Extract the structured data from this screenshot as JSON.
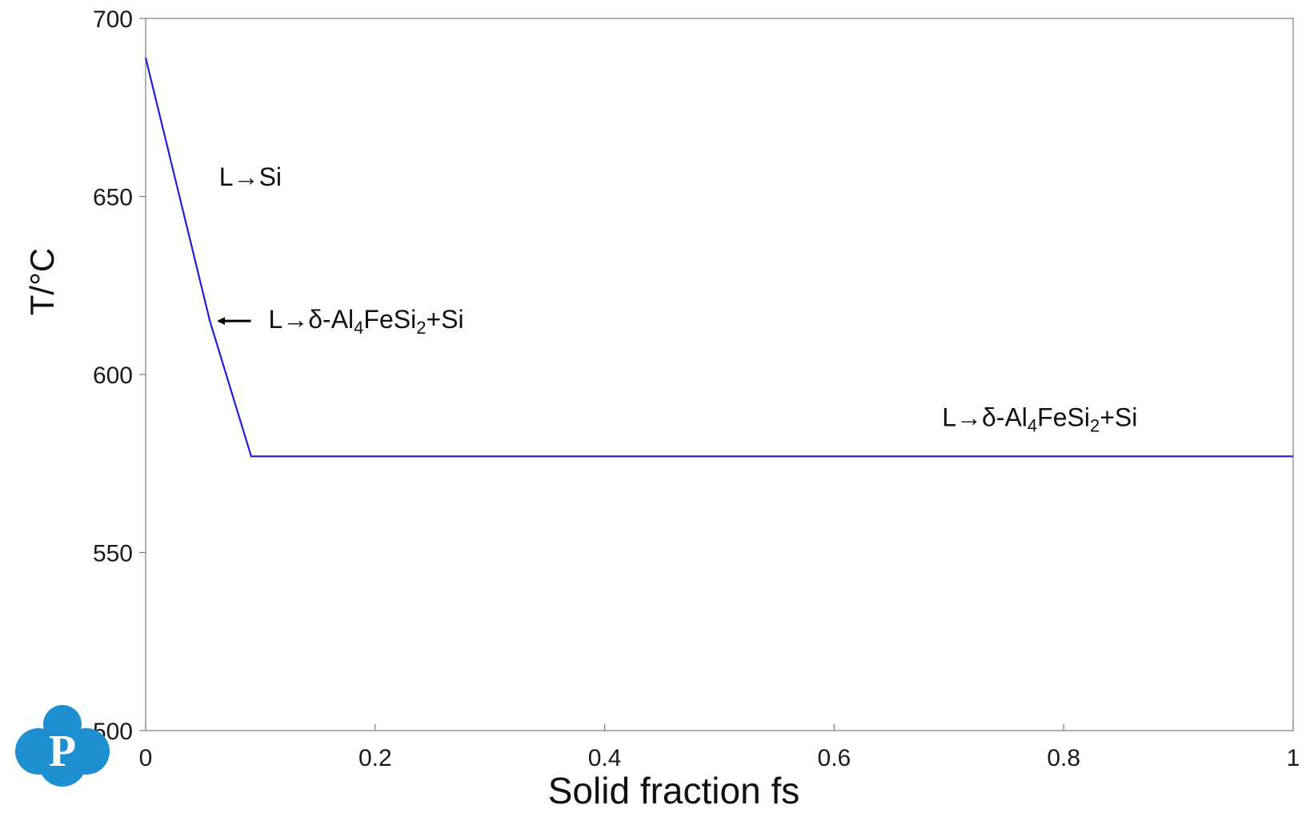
{
  "chart_data": {
    "type": "line",
    "title": "",
    "xlabel": "Solid fraction fs",
    "ylabel": "T/°C",
    "xlim": [
      0,
      1
    ],
    "ylim": [
      500,
      700
    ],
    "xticks": [
      0,
      0.2,
      0.4,
      0.6,
      0.8,
      1
    ],
    "xtick_labels": [
      "0",
      "0.2",
      "0.4",
      "0.6",
      "0.8",
      "1"
    ],
    "yticks": [
      500,
      550,
      600,
      650,
      700
    ],
    "ytick_labels": [
      "500",
      "550",
      "600",
      "650",
      "700"
    ],
    "grid": false,
    "legend": "none",
    "series": [
      {
        "color": "#1f1fd6",
        "x": [
          0,
          0.056,
          0.092,
          1
        ],
        "y": [
          689,
          615,
          577,
          577
        ]
      }
    ],
    "annotations": [
      {
        "id": "a1",
        "parts": [
          [
            "L→Si",
            ""
          ]
        ],
        "x": 0.064,
        "y": 653
      },
      {
        "id": "a2",
        "parts": [
          [
            "L→δ-Al",
            ""
          ],
          [
            "4",
            "sub"
          ],
          [
            "FeSi",
            ""
          ],
          [
            "2",
            "sub"
          ],
          [
            "+Si",
            ""
          ]
        ],
        "x": 0.107,
        "y": 613,
        "arrow_to": [
          0.058,
          615
        ]
      },
      {
        "id": "a3",
        "parts": [
          [
            "L→δ-Al",
            ""
          ],
          [
            "4",
            "sub"
          ],
          [
            "FeSi",
            ""
          ],
          [
            "2",
            "sub"
          ],
          [
            "+Si",
            ""
          ]
        ],
        "x": 0.694,
        "y": 585.5
      }
    ]
  },
  "logo": {
    "letter": "P",
    "color": "#1e8fd0"
  }
}
